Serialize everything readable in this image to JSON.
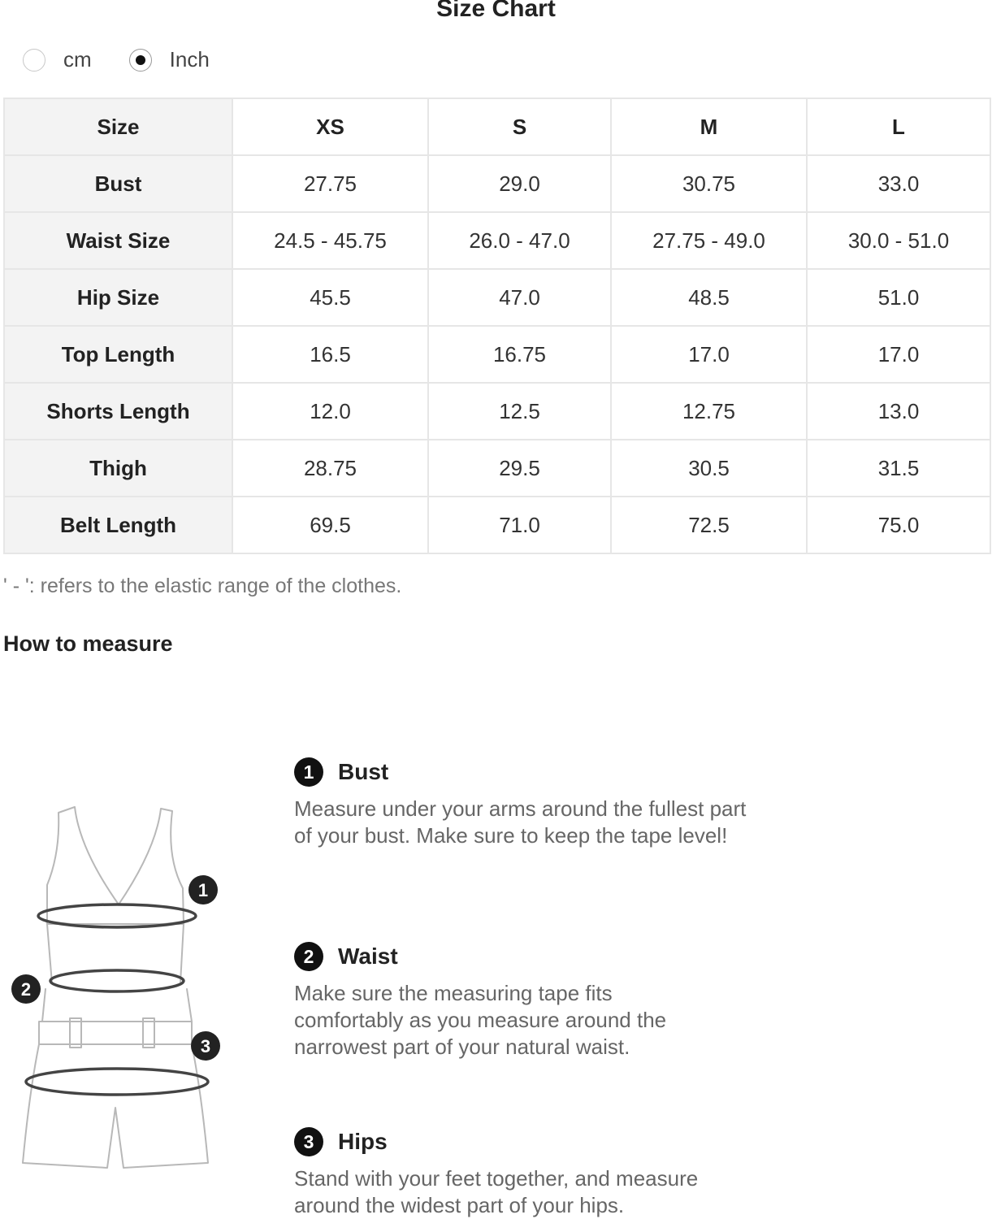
{
  "title": "Size Chart",
  "units": [
    {
      "label": "cm",
      "selected": false
    },
    {
      "label": "Inch",
      "selected": true
    }
  ],
  "table": {
    "header": [
      "Size",
      "XS",
      "S",
      "M",
      "L"
    ],
    "rows": [
      [
        "Bust",
        "27.75",
        "29.0",
        "30.75",
        "33.0"
      ],
      [
        "Waist Size",
        "24.5 - 45.75",
        "26.0 - 47.0",
        "27.75 - 49.0",
        "30.0 - 51.0"
      ],
      [
        "Hip Size",
        "45.5",
        "47.0",
        "48.5",
        "51.0"
      ],
      [
        "Top Length",
        "16.5",
        "16.75",
        "17.0",
        "17.0"
      ],
      [
        "Shorts Length",
        "12.0",
        "12.5",
        "12.75",
        "13.0"
      ],
      [
        "Thigh",
        "28.75",
        "29.5",
        "30.5",
        "31.5"
      ],
      [
        "Belt Length",
        "69.5",
        "71.0",
        "72.5",
        "75.0"
      ]
    ]
  },
  "note": "' - ':  refers to the elastic range of the clothes.",
  "how_to_title": "How to measure",
  "figure": {
    "markers": [
      "1",
      "2",
      "3"
    ]
  },
  "instructions": [
    {
      "number": "1",
      "title": "Bust",
      "description": "Measure under your arms around the fullest part of your bust. Make sure to keep the tape level!"
    },
    {
      "number": "2",
      "title": "Waist",
      "description": "Make sure the measuring tape fits comfortably as you measure around the narrowest part of your natural waist."
    },
    {
      "number": "3",
      "title": "Hips",
      "description": "Stand with your feet together, and measure around the widest part of your hips."
    }
  ]
}
